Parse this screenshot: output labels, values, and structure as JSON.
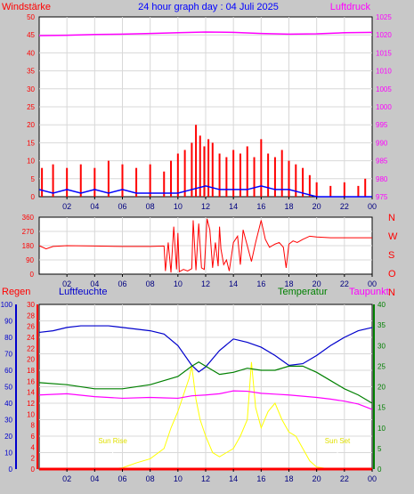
{
  "chart_data": [
    {
      "type": "bar",
      "panel": "wind-pressure",
      "title": "24 hour graph day : 04 Juli 2025",
      "ylabel_left": "Windstärke",
      "ylabel_right": "Luftdruck",
      "ylim_left": [
        0,
        50
      ],
      "yticks_left": [
        "0",
        "5",
        "10",
        "15",
        "20",
        "25",
        "30",
        "35",
        "40",
        "45",
        "50"
      ],
      "ylim_right": [
        975,
        1025
      ],
      "yticks_right": [
        "975",
        "980",
        "985",
        "990",
        "995",
        "1000",
        "1005",
        "1010",
        "1015",
        "1020",
        "1025"
      ],
      "xlim": [
        0,
        24
      ],
      "xticks": [
        "02",
        "04",
        "06",
        "08",
        "10",
        "12",
        "14",
        "16",
        "18",
        "20",
        "22",
        "00"
      ],
      "grid": true,
      "series": [
        {
          "kind": "bar",
          "color": "#ff0000",
          "x": [
            0.2,
            1,
            2,
            3,
            4,
            5,
            6,
            7,
            8,
            9,
            9.5,
            10,
            10.5,
            11,
            11.3,
            11.6,
            11.9,
            12.2,
            12.5,
            13,
            13.5,
            14,
            14.5,
            15,
            15.5,
            16,
            16.5,
            17,
            17.5,
            18,
            18.5,
            19,
            19.5,
            20,
            21,
            22,
            23,
            23.5
          ],
          "values": [
            8,
            9,
            8,
            9,
            8,
            10,
            9,
            8,
            9,
            7,
            10,
            12,
            13,
            15,
            20,
            17,
            14,
            16,
            15,
            12,
            11,
            13,
            12,
            14,
            11,
            16,
            12,
            11,
            13,
            10,
            9,
            8,
            6,
            4,
            3,
            4,
            3,
            5
          ]
        },
        {
          "kind": "line",
          "color": "#0000ff",
          "x": [
            0,
            1,
            2,
            3,
            4,
            5,
            6,
            7,
            8,
            9,
            10,
            11,
            12,
            13,
            14,
            15,
            16,
            17,
            18,
            19,
            20,
            21,
            22,
            23,
            24
          ],
          "values": [
            2,
            1,
            2,
            1,
            2,
            1,
            2,
            1,
            1,
            1,
            1,
            2,
            3,
            2,
            2,
            2,
            3,
            2,
            2,
            1,
            0,
            0,
            0,
            0,
            0
          ]
        },
        {
          "kind": "line",
          "axis": "right",
          "color": "#ff00ff",
          "x": [
            0,
            2,
            4,
            6,
            8,
            10,
            12,
            14,
            16,
            18,
            20,
            22,
            24
          ],
          "values": [
            1019.8,
            1019.9,
            1020.1,
            1020.2,
            1020.4,
            1020.6,
            1020.8,
            1020.7,
            1020.4,
            1020.2,
            1020.3,
            1020.6,
            1020.7
          ]
        }
      ]
    },
    {
      "type": "line",
      "panel": "wind-direction",
      "ylim": [
        0,
        360
      ],
      "yticks": [
        "0",
        "90",
        "180",
        "270",
        "360"
      ],
      "ylabels_right": [
        "N",
        "W",
        "S",
        "O",
        "N"
      ],
      "xlim": [
        0,
        24
      ],
      "xticks": [
        "02",
        "04",
        "06",
        "08",
        "10",
        "12",
        "14",
        "16",
        "18",
        "20",
        "22",
        "00"
      ],
      "grid": true,
      "series": [
        {
          "color": "#ff0000",
          "x": [
            0,
            0.5,
            1,
            2,
            4,
            6,
            8,
            9,
            9.1,
            9.3,
            9.5,
            9.7,
            9.9,
            10,
            10.1,
            10.4,
            10.7,
            11,
            11.1,
            11.3,
            11.5,
            11.7,
            11.9,
            12.1,
            12.3,
            12.5,
            12.7,
            12.9,
            13,
            13.1,
            13.3,
            13.5,
            13.7,
            14,
            14.3,
            14.5,
            14.7,
            15,
            15.3,
            15.6,
            16,
            16.3,
            16.6,
            17,
            17.3,
            17.6,
            17.8,
            18,
            18.3,
            18.6,
            19,
            19.5,
            20,
            21,
            22,
            23,
            24
          ],
          "values": [
            180,
            160,
            175,
            180,
            178,
            175,
            175,
            178,
            20,
            200,
            10,
            300,
            30,
            260,
            15,
            30,
            20,
            35,
            340,
            25,
            320,
            40,
            30,
            350,
            280,
            40,
            200,
            50,
            300,
            160,
            60,
            90,
            20,
            200,
            240,
            60,
            280,
            180,
            80,
            200,
            340,
            220,
            170,
            190,
            200,
            170,
            40,
            190,
            210,
            200,
            220,
            240,
            235,
            230,
            230,
            230,
            230
          ]
        }
      ]
    },
    {
      "type": "line",
      "panel": "humidity-temperature",
      "labels": {
        "rain": "Regen",
        "humidity": "Luftfeuchte",
        "temperature": "Temperatur",
        "dewpoint": "Taupunkt"
      },
      "axis_humidity": {
        "ylim": [
          0,
          100
        ],
        "ticks": [
          "0",
          "10",
          "20",
          "30",
          "40",
          "50",
          "60",
          "70",
          "80",
          "90",
          "100"
        ]
      },
      "axis_rain": {
        "ylim": [
          0,
          30
        ],
        "ticks": [
          "0",
          "2",
          "4",
          "6",
          "8",
          "10",
          "12",
          "14",
          "16",
          "18",
          "20",
          "22",
          "24",
          "26",
          "28",
          "30"
        ]
      },
      "axis_temp": {
        "ylim": [
          0,
          40
        ],
        "ticks": [
          "0",
          "5",
          "10",
          "15",
          "20",
          "25",
          "30",
          "35",
          "40"
        ]
      },
      "annotations": [
        {
          "text": "Sun Rise",
          "x": 5.3
        },
        {
          "text": "Sun Set",
          "x": 21.5
        }
      ],
      "xlim": [
        0,
        24
      ],
      "xticks": [
        "02",
        "04",
        "06",
        "08",
        "10",
        "12",
        "14",
        "16",
        "18",
        "20",
        "22",
        "00"
      ],
      "grid": true,
      "series": [
        {
          "name": "Luftfeuchte",
          "axis": "humidity",
          "color": "#0000cc",
          "x": [
            0,
            1,
            2,
            3,
            4,
            5,
            6,
            7,
            8,
            9,
            10,
            11,
            11.5,
            12,
            13,
            14,
            15,
            16,
            17,
            18,
            19,
            20,
            21,
            22,
            23,
            24
          ],
          "values": [
            83,
            84,
            86,
            87,
            87,
            87,
            86,
            85,
            84,
            82,
            75,
            63,
            59,
            62,
            72,
            79,
            77,
            74,
            69,
            63,
            64,
            69,
            75,
            80,
            84,
            86
          ]
        },
        {
          "name": "Temperatur",
          "axis": "temp",
          "color": "#008000",
          "x": [
            0,
            2,
            4,
            6,
            8,
            9,
            10,
            11,
            11.5,
            12,
            13,
            14,
            15,
            16,
            17,
            18,
            19,
            20,
            21,
            22,
            23,
            24
          ],
          "values": [
            21,
            20.5,
            19.5,
            19.5,
            20.5,
            21.5,
            22.5,
            25,
            26,
            25,
            23,
            23.5,
            24.5,
            24,
            24,
            25,
            25,
            23.5,
            21.5,
            19.5,
            18,
            16
          ]
        },
        {
          "name": "Taupunkt",
          "axis": "temp",
          "color": "#ff00ff",
          "x": [
            0,
            2,
            4,
            6,
            8,
            9,
            10,
            11,
            12,
            13,
            14,
            15,
            16,
            17,
            18,
            19,
            20,
            21,
            22,
            23,
            24
          ],
          "values": [
            18,
            18.3,
            17.6,
            17.2,
            17.4,
            17.3,
            17.2,
            17.8,
            18,
            18.3,
            19,
            18.9,
            18.4,
            18.2,
            18,
            17.7,
            17.4,
            17,
            16.5,
            15.8,
            14.5
          ]
        },
        {
          "name": "solar",
          "axis": "temp",
          "color": "#ffff00",
          "x": [
            0,
            5,
            6,
            7,
            8,
            9,
            9.5,
            10,
            10.5,
            10.8,
            11,
            11.3,
            11.6,
            12,
            12.5,
            13,
            13.5,
            14,
            14.5,
            15,
            15.3,
            15.6,
            16,
            16.5,
            17,
            17.5,
            18,
            18.5,
            19,
            19.5,
            20,
            21,
            24
          ],
          "values": [
            0,
            0,
            0.3,
            1.5,
            2.5,
            5,
            10,
            14,
            19,
            22,
            25,
            17,
            12,
            8,
            4,
            3,
            4,
            5,
            8,
            12,
            26,
            15,
            10,
            14,
            16,
            12,
            9,
            8,
            5,
            2,
            0.5,
            0,
            0
          ]
        },
        {
          "name": "Regen",
          "axis": "rain",
          "color": "#ff0000",
          "x": [
            0,
            24
          ],
          "values": [
            0,
            0
          ]
        }
      ]
    }
  ]
}
